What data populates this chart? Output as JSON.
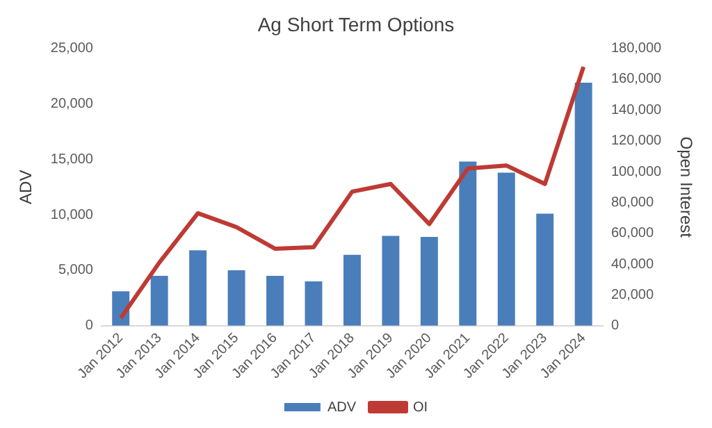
{
  "chart_data": {
    "type": "bar",
    "title": "Ag Short Term Options",
    "ylabel": "ADV",
    "y2label": "Open Interest",
    "categories": [
      "Jan 2012",
      "Jan 2013",
      "Jan 2014",
      "Jan 2015",
      "Jan 2016",
      "Jan 2017",
      "Jan 2018",
      "Jan 2019",
      "Jan 2020",
      "Jan 2021",
      "Jan 2022",
      "Jan 2023",
      "Jan 2024"
    ],
    "series": [
      {
        "name": "ADV",
        "type": "bar",
        "color": "#4a7ebb",
        "values": [
          3100,
          4500,
          6800,
          5000,
          4500,
          4000,
          6400,
          8100,
          8000,
          14800,
          13800,
          10100,
          21900
        ]
      },
      {
        "name": "OI",
        "type": "line",
        "axis": "y2",
        "color": "#be3a34",
        "values": [
          5000,
          41000,
          73000,
          64000,
          50000,
          51000,
          87000,
          92000,
          66000,
          102000,
          104000,
          92000,
          168000
        ]
      }
    ],
    "ylim": [
      0,
      25000
    ],
    "yticks": [
      0,
      {
        "value": 5000,
        "label": "5,000"
      },
      {
        "value": 10000,
        "label": "10,000"
      },
      {
        "value": 15000,
        "label": "15,000"
      },
      {
        "value": 20000,
        "label": "20,000"
      },
      {
        "value": 25000,
        "label": "25,000"
      }
    ],
    "y2lim": [
      0,
      180000
    ],
    "y2ticks": [
      0,
      {
        "value": 20000,
        "label": "20,000"
      },
      {
        "value": 40000,
        "label": "40,000"
      },
      {
        "value": 60000,
        "label": "60,000"
      },
      {
        "value": 80000,
        "label": "80,000"
      },
      {
        "value": 100000,
        "label": "100,000"
      },
      {
        "value": 120000,
        "label": "120,000"
      },
      {
        "value": 140000,
        "label": "140,000"
      },
      {
        "value": 160000,
        "label": "160,000"
      },
      {
        "value": 180000,
        "label": "180,000"
      }
    ],
    "grid": false,
    "legend": "bottom",
    "marker": "none"
  }
}
